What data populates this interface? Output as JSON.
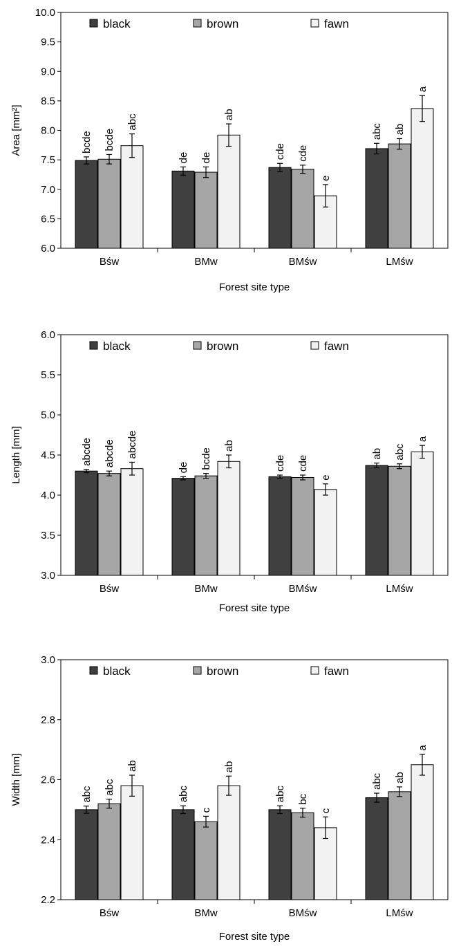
{
  "chart_data": [
    {
      "type": "bar",
      "xlabel": "Forest site type",
      "ylabel": "Area [mm²]",
      "ylim": [
        6.0,
        10.0
      ],
      "yticks": [
        "6.0",
        "6.5",
        "7.0",
        "7.5",
        "8.0",
        "8.5",
        "9.0",
        "9.5",
        "10.0"
      ],
      "categories": [
        "Bśw",
        "BMw",
        "BMśw",
        "LMśw"
      ],
      "legend": "top",
      "series": [
        {
          "name": "black",
          "color": "#404040",
          "values": [
            7.49,
            7.31,
            7.37,
            7.69
          ],
          "errors": [
            0.06,
            0.07,
            0.07,
            0.09
          ],
          "labels": [
            "bcde",
            "de",
            "cde",
            "abc"
          ]
        },
        {
          "name": "brown",
          "color": "#a6a6a6",
          "values": [
            7.51,
            7.29,
            7.34,
            7.77
          ],
          "errors": [
            0.08,
            0.09,
            0.07,
            0.09
          ],
          "labels": [
            "bcde",
            "de",
            "cde",
            "ab"
          ]
        },
        {
          "name": "fawn",
          "color": "#f2f2f2",
          "values": [
            7.74,
            7.92,
            6.89,
            8.37
          ],
          "errors": [
            0.2,
            0.19,
            0.19,
            0.22
          ],
          "labels": [
            "abc",
            "ab",
            "e",
            "a"
          ]
        }
      ]
    },
    {
      "type": "bar",
      "xlabel": "Forest site type",
      "ylabel": "Length [mm]",
      "ylim": [
        3.0,
        6.0
      ],
      "yticks": [
        "3.0",
        "3.5",
        "4.0",
        "4.5",
        "5.0",
        "5.5",
        "6.0"
      ],
      "categories": [
        "Bśw",
        "BMw",
        "BMśw",
        "LMśw"
      ],
      "legend": "top",
      "series": [
        {
          "name": "black",
          "color": "#404040",
          "values": [
            4.3,
            4.21,
            4.23,
            4.37
          ],
          "errors": [
            0.02,
            0.02,
            0.02,
            0.03
          ],
          "labels": [
            "abcde",
            "de",
            "cde",
            "ab"
          ]
        },
        {
          "name": "brown",
          "color": "#a6a6a6",
          "values": [
            4.27,
            4.24,
            4.22,
            4.36
          ],
          "errors": [
            0.03,
            0.03,
            0.03,
            0.03
          ],
          "labels": [
            "abcde",
            "bcde",
            "cde",
            "abc"
          ]
        },
        {
          "name": "fawn",
          "color": "#f2f2f2",
          "values": [
            4.33,
            4.42,
            4.07,
            4.54
          ],
          "errors": [
            0.08,
            0.08,
            0.07,
            0.08
          ],
          "labels": [
            "abcde",
            "ab",
            "e",
            "a"
          ]
        }
      ]
    },
    {
      "type": "bar",
      "xlabel": "Forest site type",
      "ylabel": "Width [mm]",
      "ylim": [
        2.2,
        3.0
      ],
      "yticks": [
        "2.2",
        "2.4",
        "2.6",
        "2.8",
        "3.0"
      ],
      "categories": [
        "Bśw",
        "BMw",
        "BMśw",
        "LMśw"
      ],
      "legend": "top",
      "series": [
        {
          "name": "black",
          "color": "#404040",
          "values": [
            2.5,
            2.5,
            2.5,
            2.54
          ],
          "errors": [
            0.012,
            0.013,
            0.013,
            0.015
          ],
          "labels": [
            "abc",
            "abc",
            "abc",
            "abc"
          ]
        },
        {
          "name": "brown",
          "color": "#a6a6a6",
          "values": [
            2.52,
            2.46,
            2.49,
            2.56
          ],
          "errors": [
            0.015,
            0.018,
            0.015,
            0.016
          ],
          "labels": [
            "abc",
            "c",
            "bc",
            "ab"
          ]
        },
        {
          "name": "fawn",
          "color": "#f2f2f2",
          "values": [
            2.58,
            2.58,
            2.44,
            2.65
          ],
          "errors": [
            0.035,
            0.032,
            0.036,
            0.035
          ],
          "labels": [
            "ab",
            "ab",
            "c",
            "a"
          ]
        }
      ]
    }
  ]
}
